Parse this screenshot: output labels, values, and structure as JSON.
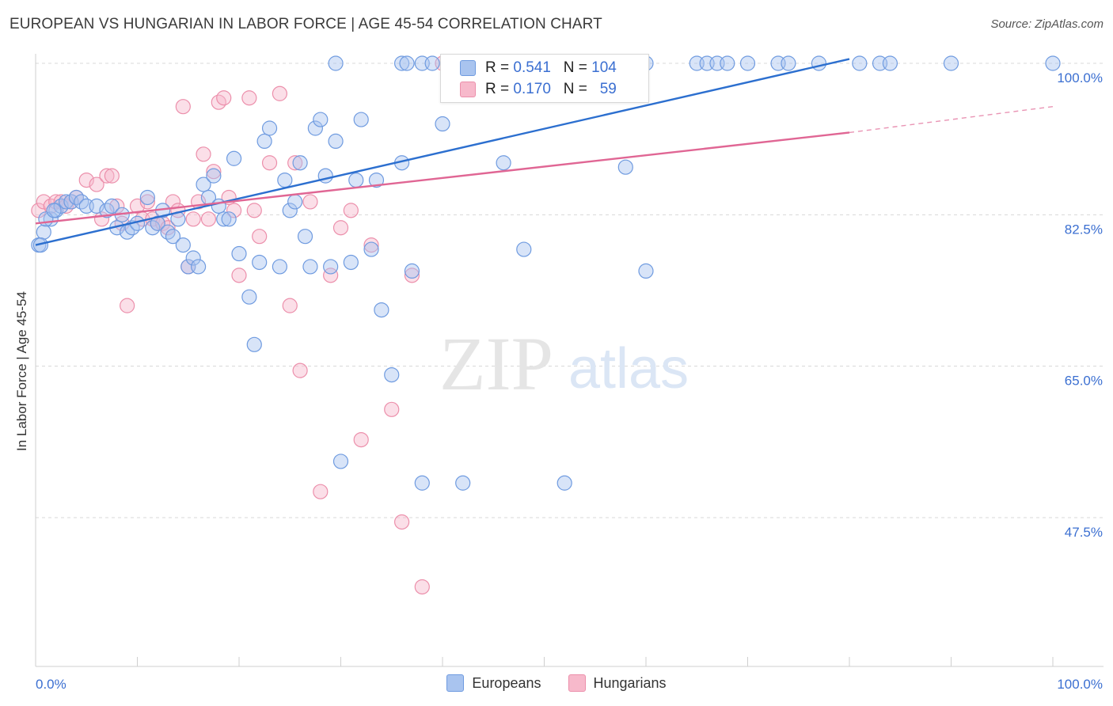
{
  "title": "EUROPEAN VS HUNGARIAN IN LABOR FORCE | AGE 45-54 CORRELATION CHART",
  "source": "Source: ZipAtlas.com",
  "watermark": {
    "zip": "ZIP",
    "atlas": "atlas"
  },
  "stats": {
    "europeans": {
      "r_label": "R =",
      "r": "0.541",
      "n_label": "N =",
      "n": "104"
    },
    "hungarians": {
      "r_label": "R =",
      "r": "0.170",
      "n_label": "N =",
      "n": "59"
    }
  },
  "legend": {
    "europeans": "Europeans",
    "hungarians": "Hungarians"
  },
  "colors": {
    "europeans_fill": "#a9c4ef",
    "europeans_stroke": "#6f9be0",
    "europeans_line": "#2c6fcf",
    "hungarians_fill": "#f7b9cb",
    "hungarians_stroke": "#ec8fab",
    "hungarians_line": "#e06694",
    "axis_text": "#3b6fd1",
    "grid": "#d8d8d8"
  },
  "chart_data": {
    "type": "scatter",
    "title": "EUROPEAN VS HUNGARIAN IN LABOR FORCE | AGE 45-54 CORRELATION CHART",
    "xlabel": "",
    "ylabel": "In Labor Force | Age 45-54",
    "xlim": [
      0,
      100
    ],
    "ylim": [
      30,
      101
    ],
    "x_tick_labels": [
      "0.0%",
      "100.0%"
    ],
    "y_ticks": [
      47.5,
      65.0,
      82.5,
      100.0
    ],
    "y_tick_labels": [
      "47.5%",
      "65.0%",
      "82.5%",
      "100.0%"
    ],
    "grid": true,
    "legend_position": "bottom",
    "series": [
      {
        "name": "Europeans",
        "trend": [
          [
            0,
            79.0
          ],
          [
            80,
            100.5
          ]
        ],
        "points": [
          [
            0.3,
            79
          ],
          [
            0.8,
            80.5
          ],
          [
            1.5,
            82
          ],
          [
            2,
            83
          ],
          [
            2.5,
            83.5
          ],
          [
            3,
            84
          ],
          [
            3.5,
            84
          ],
          [
            4,
            84.5
          ],
          [
            4.5,
            84
          ],
          [
            5,
            83.5
          ],
          [
            6,
            83.5
          ],
          [
            7,
            83
          ],
          [
            7.5,
            83.5
          ],
          [
            8,
            81
          ],
          [
            8.5,
            82.5
          ],
          [
            9,
            80.5
          ],
          [
            9.5,
            81
          ],
          [
            10,
            81.5
          ],
          [
            11,
            84.5
          ],
          [
            11.5,
            81
          ],
          [
            12,
            81.5
          ],
          [
            12.5,
            83
          ],
          [
            13,
            80.5
          ],
          [
            13.5,
            80
          ],
          [
            14,
            82
          ],
          [
            14.5,
            79
          ],
          [
            15,
            76.5
          ],
          [
            15.5,
            77.5
          ],
          [
            16,
            76.5
          ],
          [
            16.5,
            86
          ],
          [
            17,
            84.5
          ],
          [
            17.5,
            87
          ],
          [
            18,
            83.5
          ],
          [
            18.5,
            82
          ],
          [
            19,
            82
          ],
          [
            19.5,
            89
          ],
          [
            20,
            78
          ],
          [
            21,
            73
          ],
          [
            21.5,
            67.5
          ],
          [
            22,
            77
          ],
          [
            22.5,
            91
          ],
          [
            23,
            92.5
          ],
          [
            24,
            76.5
          ],
          [
            24.5,
            86.5
          ],
          [
            25,
            83
          ],
          [
            25.5,
            84
          ],
          [
            26,
            88.5
          ],
          [
            26.5,
            80
          ],
          [
            27,
            76.5
          ],
          [
            27.5,
            92.5
          ],
          [
            28,
            93.5
          ],
          [
            28.5,
            87
          ],
          [
            29,
            76.5
          ],
          [
            29.5,
            91
          ],
          [
            30,
            54
          ],
          [
            31,
            77
          ],
          [
            31.5,
            86.5
          ],
          [
            32,
            93.5
          ],
          [
            33,
            78.5
          ],
          [
            33.5,
            86.5
          ],
          [
            34,
            71.5
          ],
          [
            35,
            64
          ],
          [
            36,
            88.5
          ],
          [
            37,
            76
          ],
          [
            38,
            51.5
          ],
          [
            40,
            93
          ],
          [
            42,
            51.5
          ],
          [
            46,
            88.5
          ],
          [
            48,
            78.5
          ],
          [
            52,
            51.5
          ],
          [
            58,
            88
          ],
          [
            60,
            76
          ],
          [
            29.5,
            100
          ],
          [
            36,
            100
          ],
          [
            36.5,
            100
          ],
          [
            38,
            100
          ],
          [
            39,
            100
          ],
          [
            42,
            100
          ],
          [
            42.5,
            100
          ],
          [
            45,
            100
          ],
          [
            46,
            100
          ],
          [
            48,
            100
          ],
          [
            50,
            100
          ],
          [
            52,
            100
          ],
          [
            54,
            100
          ],
          [
            56,
            100
          ],
          [
            58,
            100
          ],
          [
            60,
            100
          ],
          [
            65,
            100
          ],
          [
            66,
            100
          ],
          [
            67,
            100
          ],
          [
            68,
            100
          ],
          [
            70,
            100
          ],
          [
            73,
            100
          ],
          [
            74,
            100
          ],
          [
            77,
            100
          ],
          [
            81,
            100
          ],
          [
            83,
            100
          ],
          [
            84,
            100
          ],
          [
            90,
            100
          ],
          [
            100,
            100
          ],
          [
            0.5,
            79
          ],
          [
            1,
            82
          ],
          [
            1.8,
            83
          ]
        ]
      },
      {
        "name": "Hungarians",
        "trend": [
          [
            0,
            81.5
          ],
          [
            80,
            92.0
          ]
        ],
        "trend_extended": [
          [
            80,
            92.0
          ],
          [
            100,
            95.0
          ]
        ],
        "points": [
          [
            0.3,
            83
          ],
          [
            0.8,
            84
          ],
          [
            1.5,
            83.5
          ],
          [
            2,
            84
          ],
          [
            2.5,
            84
          ],
          [
            3,
            83.5
          ],
          [
            3.5,
            84
          ],
          [
            4,
            84.5
          ],
          [
            5,
            86.5
          ],
          [
            6,
            86
          ],
          [
            6.5,
            82
          ],
          [
            7,
            87
          ],
          [
            7.5,
            87
          ],
          [
            8,
            83.5
          ],
          [
            8.5,
            81.5
          ],
          [
            9,
            72
          ],
          [
            10,
            83.5
          ],
          [
            10.5,
            82
          ],
          [
            11,
            84
          ],
          [
            11.5,
            82
          ],
          [
            12,
            81.5
          ],
          [
            12.5,
            81.5
          ],
          [
            13,
            81
          ],
          [
            13.5,
            84
          ],
          [
            14,
            83
          ],
          [
            14.5,
            95
          ],
          [
            15,
            76.5
          ],
          [
            15.5,
            82
          ],
          [
            16,
            84
          ],
          [
            16.5,
            89.5
          ],
          [
            17,
            82
          ],
          [
            17.5,
            87.5
          ],
          [
            18,
            95.5
          ],
          [
            18.5,
            96
          ],
          [
            19,
            84.5
          ],
          [
            19.5,
            83
          ],
          [
            20,
            75.5
          ],
          [
            21,
            96
          ],
          [
            21.5,
            83
          ],
          [
            22,
            80
          ],
          [
            23,
            88.5
          ],
          [
            24,
            96.5
          ],
          [
            25,
            72
          ],
          [
            25.5,
            88.5
          ],
          [
            26,
            64.5
          ],
          [
            27,
            84
          ],
          [
            28,
            50.5
          ],
          [
            29,
            75.5
          ],
          [
            30,
            81
          ],
          [
            31,
            83
          ],
          [
            32,
            56.5
          ],
          [
            33,
            79
          ],
          [
            35,
            60
          ],
          [
            36,
            47
          ],
          [
            37,
            75.5
          ],
          [
            38,
            39.5
          ],
          [
            40,
            100
          ],
          [
            45,
            100
          ],
          [
            50,
            100
          ]
        ]
      }
    ]
  }
}
